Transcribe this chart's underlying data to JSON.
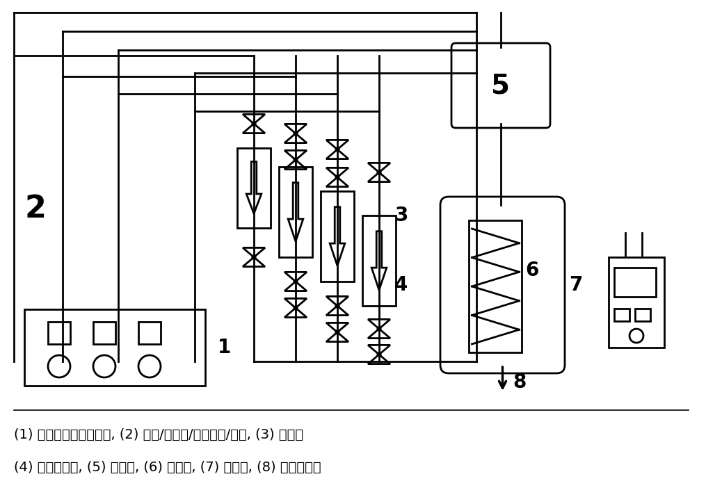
{
  "caption_line1": "(1) 流量和温度控制界面, (2) 氨气/甲硫醚/二甲二硫/氮气, (3) 单向阀",
  "caption_line2": "(4) 质子流量计, (5) 混合器, (6) 吸附柱, (7) 加热炉, (8) 气体检测器",
  "bg_color": "#ffffff",
  "line_color": "#000000",
  "lw": 2.0,
  "font_size_caption": 14,
  "font_size_label": 20
}
